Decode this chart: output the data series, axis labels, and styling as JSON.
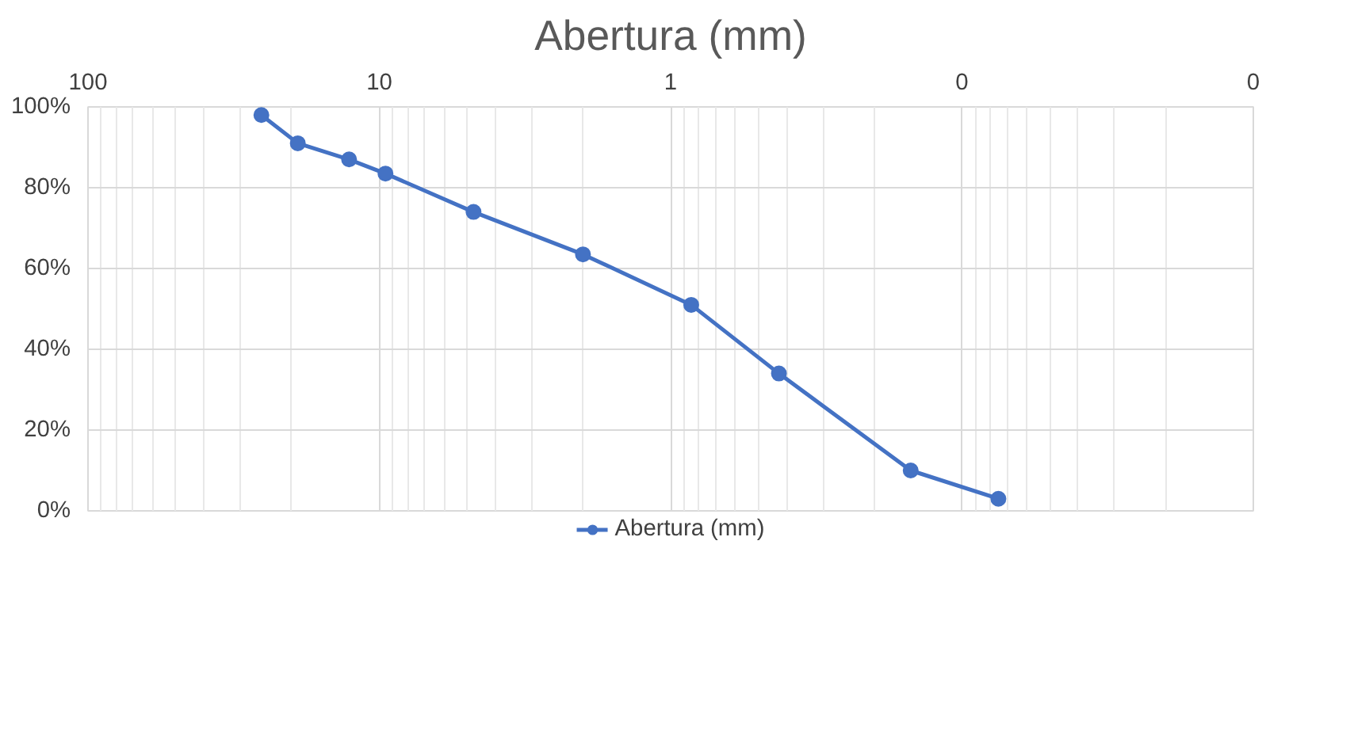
{
  "chart_data": {
    "type": "line",
    "title": "Abertura (mm)",
    "x": [
      25.4,
      19.05,
      12.7,
      9.525,
      4.75,
      2.0,
      0.85,
      0.425,
      0.15,
      0.075
    ],
    "series": [
      {
        "name": "Abertura (mm)",
        "color": "#4472c4",
        "values": [
          98,
          91,
          87,
          83.5,
          74,
          63.5,
          51,
          34,
          10,
          3
        ]
      }
    ],
    "log": "x",
    "xlim": [
      100,
      0.01
    ],
    "xticks": [
      100,
      10,
      1,
      {
        "value": 0.1,
        "label": "0"
      },
      {
        "value": 0.01,
        "label": "0"
      }
    ],
    "ylim": [
      0,
      100
    ],
    "yticks": [
      {
        "value": 0,
        "label": "0%"
      },
      {
        "value": 20,
        "label": "20%"
      },
      {
        "value": 40,
        "label": "40%"
      },
      {
        "value": 60,
        "label": "60%"
      },
      {
        "value": 80,
        "label": "80%"
      },
      {
        "value": 100,
        "label": "100%"
      }
    ],
    "grid": true,
    "legend": "bottom",
    "marker": "circle",
    "line_style": "solid"
  }
}
